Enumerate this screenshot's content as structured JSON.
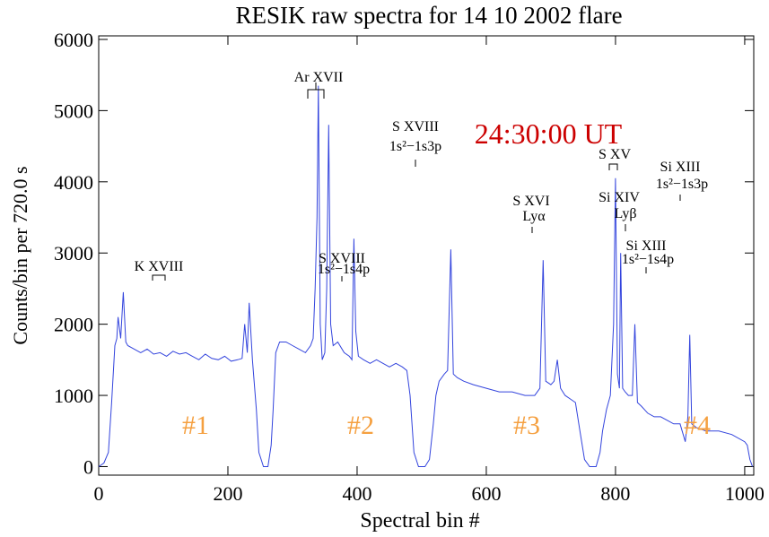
{
  "chart_data": {
    "type": "line",
    "title": "RESIK raw spectra for  14 10 2002  flare",
    "x_label": "Spectral bin #",
    "y_label": "Counts/bin per  720.0 s",
    "time_label": "24:30:00 UT",
    "time_color": "#cc0000",
    "annotations": [
      "Ar XVII",
      "S XVIII",
      "1s²−1s3p",
      "S XV",
      "Si XIII",
      "1s²−1s3p",
      "S XVI",
      "Lyα",
      "Si XIV",
      "Lyβ",
      "Si XIII",
      "1s²−1s4p",
      "K XVIII",
      "S XVIII",
      "1s²−1s4p"
    ],
    "regions": [
      "#1",
      "#2",
      "#3",
      "#4"
    ],
    "region_color": "#f5a040",
    "xlim": [
      0,
      1014
    ],
    "ylim": [
      -120,
      6050
    ],
    "xticks": [
      0,
      200,
      400,
      600,
      800,
      1000
    ],
    "yticks": [
      0,
      1000,
      2000,
      3000,
      4000,
      5000,
      6000
    ],
    "series": [
      {
        "color": "#3344dd",
        "x": [
          0,
          8,
          15,
          20,
          25,
          28,
          30,
          34,
          38,
          42,
          45,
          55,
          65,
          75,
          85,
          95,
          105,
          115,
          125,
          135,
          145,
          155,
          165,
          175,
          185,
          195,
          205,
          215,
          222,
          226,
          230,
          233,
          238,
          244,
          248,
          255,
          262,
          267,
          270,
          274,
          280,
          290,
          300,
          310,
          320,
          328,
          332,
          335,
          338,
          340,
          343,
          346,
          350,
          353,
          356,
          359,
          363,
          370,
          380,
          388,
          392,
          395,
          398,
          402,
          410,
          420,
          430,
          440,
          450,
          460,
          470,
          477,
          482,
          488,
          495,
          505,
          512,
          518,
          522,
          527,
          535,
          540,
          545,
          549,
          555,
          565,
          580,
          600,
          620,
          640,
          660,
          675,
          683,
          688,
          692,
          700,
          705,
          710,
          715,
          722,
          730,
          738,
          745,
          752,
          760,
          770,
          776,
          780,
          786,
          792,
          797,
          800,
          803,
          806,
          808,
          811,
          815,
          820,
          826,
          830,
          834,
          840,
          850,
          860,
          870,
          880,
          890,
          900,
          908,
          912,
          915,
          918,
          925,
          940,
          960,
          980,
          1000,
          1004,
          1008,
          1012
        ],
        "values": [
          0,
          50,
          200,
          900,
          1700,
          1800,
          2100,
          1800,
          2450,
          1750,
          1700,
          1650,
          1600,
          1650,
          1580,
          1600,
          1550,
          1620,
          1580,
          1600,
          1550,
          1500,
          1580,
          1520,
          1500,
          1550,
          1480,
          1500,
          1520,
          2000,
          1600,
          2300,
          1500,
          800,
          200,
          0,
          0,
          300,
          800,
          1600,
          1750,
          1750,
          1700,
          1650,
          1600,
          1700,
          1800,
          2500,
          3500,
          5350,
          2000,
          1500,
          1600,
          2500,
          4800,
          2000,
          1700,
          1750,
          1600,
          1550,
          1500,
          3200,
          1900,
          1550,
          1500,
          1450,
          1500,
          1450,
          1400,
          1450,
          1400,
          1350,
          1000,
          200,
          0,
          0,
          100,
          600,
          1000,
          1200,
          1300,
          1350,
          3050,
          1300,
          1250,
          1200,
          1150,
          1100,
          1050,
          1050,
          1000,
          1000,
          1100,
          2900,
          1200,
          1150,
          1200,
          1500,
          1100,
          1000,
          950,
          900,
          500,
          100,
          0,
          0,
          200,
          500,
          800,
          1000,
          2000,
          4050,
          1300,
          1100,
          3000,
          1100,
          1050,
          1000,
          1000,
          2000,
          900,
          850,
          750,
          700,
          700,
          650,
          600,
          600,
          350,
          700,
          1850,
          600,
          550,
          500,
          500,
          450,
          350,
          300,
          100,
          0
        ]
      }
    ]
  }
}
